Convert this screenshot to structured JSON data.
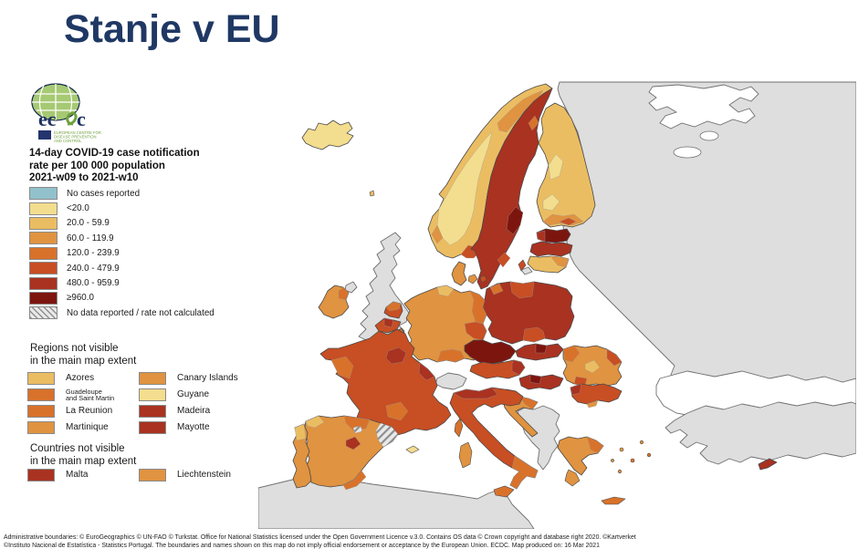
{
  "page": {
    "title": "Stanje v EU",
    "title_color": "#1F3864",
    "background": "#FFFFFF"
  },
  "logo": {
    "acronym": "ecdc",
    "org_lines": "EUROPEAN CENTRE FOR\nDISEASE PREVENTION\nAND CONTROL",
    "globe_color": "#A6C973",
    "globe_grid_color": "#FFFFFF",
    "acronym_color": "#1E3160",
    "flag_color": "#24356E",
    "org_text_color": "#6FA13C"
  },
  "map_legend": {
    "title": "14-day COVID-19 case notification\nrate per 100 000 population\n2021-w09 to 2021-w10",
    "items": [
      {
        "label": "No cases reported",
        "fill": "no_cases"
      },
      {
        "label": "<20.0",
        "fill": "c1"
      },
      {
        "label": "20.0 - 59.9",
        "fill": "c2"
      },
      {
        "label": "60.0 - 119.9",
        "fill": "c3"
      },
      {
        "label": "120.0 - 239.9",
        "fill": "c4"
      },
      {
        "label": "240.0 - 479.9",
        "fill": "c5"
      },
      {
        "label": "480.0 - 959.9",
        "fill": "c6"
      },
      {
        "label": "≥960.0",
        "fill": "c7"
      },
      {
        "label": "No data reported / rate not calculated",
        "fill": "no_data"
      }
    ]
  },
  "regions_not_visible": {
    "heading": "Regions not visible\nin the main map extent",
    "items": [
      {
        "label": "Azores",
        "fill": "c2"
      },
      {
        "label": "Canary Islands",
        "fill": "c3"
      },
      {
        "label": "Guadeloupe\nand Saint Martin",
        "fill": "c4",
        "small": true
      },
      {
        "label": "Guyane",
        "fill": "c1"
      },
      {
        "label": "La Reunion",
        "fill": "c4"
      },
      {
        "label": "Madeira",
        "fill": "c6"
      },
      {
        "label": "Martinique",
        "fill": "c3"
      },
      {
        "label": "Mayotte",
        "fill": "c6"
      }
    ]
  },
  "countries_not_visible": {
    "heading": "Countries not visible\nin the main map extent",
    "items": [
      {
        "label": "Malta",
        "fill": "c6"
      },
      {
        "label": "Liechtenstein",
        "fill": "c3"
      }
    ]
  },
  "footer": {
    "line1": "Administrative boundaries: © EuroGeographics © UN-FAO © Turkstat. Office for National Statistics licensed under the Open Government Licence v.3.0. Contains OS data © Crown copyright and database right 2020. ©Kartverket",
    "line2": "©Instituto Nacional de Estatística - Statistics Portugal. The boundaries and names shown on this map do not imply official endorsement or acceptance by the European Union. ECDC. Map produced on: 16 Mar 2021"
  },
  "palette": {
    "no_cases": "#92C1CC",
    "c1": "#F3DD8E",
    "c2": "#EBBD62",
    "c3": "#E09340",
    "c4": "#D8722B",
    "c5": "#C84E23",
    "c6": "#A93221",
    "c7": "#7D150F",
    "non_eu": "#DEDEDE",
    "sea": "#FFFFFF",
    "border_country": "#4A4A4A",
    "border_non_eu": "#707070",
    "hatch_stripe": "#8F8F8F",
    "hatch_bg": "#E9E9E9"
  },
  "map": {
    "regions": {
      "east_block": "non_eu",
      "turkey": "non_eu",
      "north_africa": "non_eu",
      "balkans": "non_eu",
      "uk": "non_eu",
      "northern_ireland": "non_eu",
      "switzerland": "non_eu",
      "kaliningrad": "non_eu",
      "iceland": "c1",
      "norway": "c2",
      "sweden": "c6",
      "finland": "c2",
      "estonia": "c7",
      "latvia": "c6",
      "lithuania": "c2",
      "denmark": "c3",
      "ireland": "c3",
      "germany": "c3",
      "netherlands": "c5",
      "belgium": "c5",
      "luxembourg": "c4",
      "france": "c5",
      "czechia": "c7",
      "slovakia": "c6",
      "austria": "c5",
      "poland": "c6",
      "hungary": "c6",
      "slovenia": "c5",
      "croatia": "c3",
      "italy": "c5",
      "spain": "c3",
      "portugal": "c3",
      "romania": "c3",
      "bulgaria": "c5",
      "greece": "c3",
      "cyprus": "c6",
      "crete": "c4",
      "sicily": "c4",
      "sardinia": "c3",
      "corsica": "c4",
      "balearic": "c1",
      "gotland": "c5",
      "faroe": "c2",
      "catalonia": "no_data",
      "aragon_spot": "no_data"
    }
  }
}
